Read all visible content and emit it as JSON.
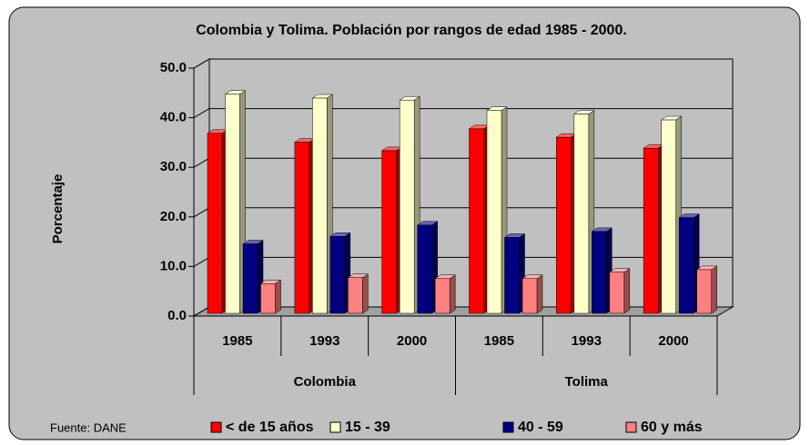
{
  "chart_data": {
    "type": "bar3d",
    "title": "Colombia y Tolima. Población por rangos de edad 1985 - 2000.",
    "y_label": "Porcentaje",
    "source": "Fuente: DANE",
    "categories": [
      "1985",
      "1993",
      "2000",
      "1985",
      "1993",
      "2000"
    ],
    "groups": [
      {
        "name": "Colombia",
        "span": 3
      },
      {
        "name": "Tolima",
        "span": 3
      }
    ],
    "series": [
      {
        "name": "< de 15 años",
        "color": "#ff0000",
        "values": [
          36.3,
          34.5,
          32.8,
          37.2,
          35.5,
          33.3
        ]
      },
      {
        "name": "15 - 39",
        "color": "#ffffcc",
        "values": [
          44.2,
          43.4,
          43.0,
          40.9,
          40.2,
          39.0
        ]
      },
      {
        "name": "40 - 59",
        "color": "#000080",
        "values": [
          14.0,
          15.5,
          17.8,
          15.3,
          16.5,
          19.3
        ]
      },
      {
        "name": "60 y más",
        "color": "#ff8080",
        "values": [
          6.0,
          7.2,
          7.0,
          7.0,
          8.3,
          8.8
        ]
      }
    ],
    "ylim": [
      0,
      50
    ],
    "yticks": [
      {
        "value": 0,
        "label": "0.0"
      },
      {
        "value": 10,
        "label": "10.0"
      },
      {
        "value": 20,
        "label": "20.0"
      },
      {
        "value": 30,
        "label": "30.0"
      },
      {
        "value": 40,
        "label": "40.0"
      },
      {
        "value": 50,
        "label": "50.0"
      }
    ],
    "grid": true,
    "legend": "bottom"
  }
}
